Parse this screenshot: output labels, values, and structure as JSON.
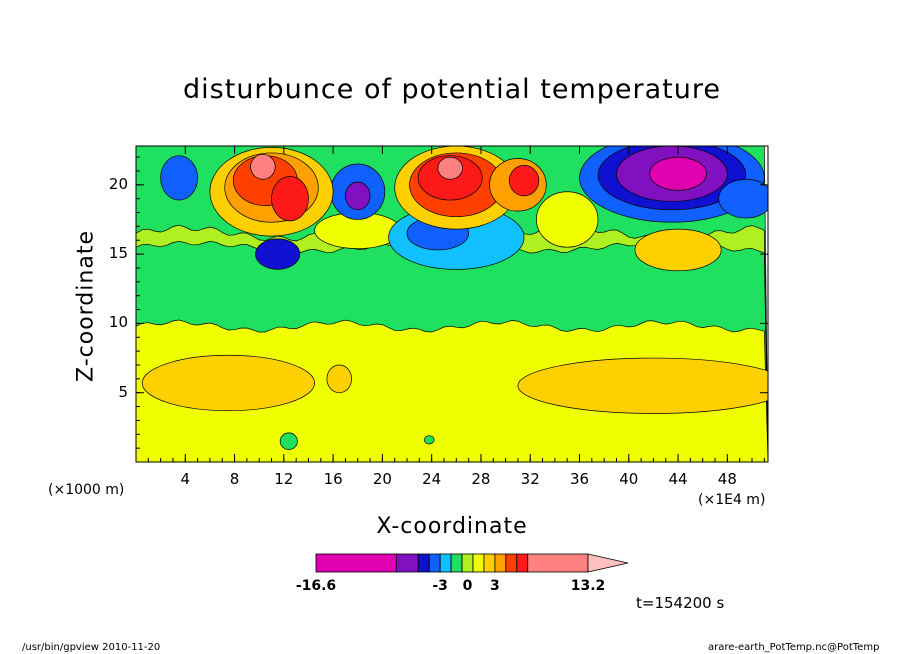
{
  "chart_data": {
    "type": "heatmap",
    "title": "disturbunce of potential temperature",
    "xlabel": "X-coordinate",
    "ylabel": "Z-coordinate",
    "x_unit": "(×1E4 m)",
    "y_unit": "(×1000 m)",
    "xlim": [
      0,
      51.3
    ],
    "ylim": [
      0,
      22.8
    ],
    "x_ticks": [
      "4",
      "8",
      "12",
      "16",
      "20",
      "24",
      "28",
      "32",
      "36",
      "40",
      "44",
      "48"
    ],
    "y_ticks": [
      "5",
      "10",
      "15",
      "20"
    ],
    "annotation": "t=154200 s",
    "colorbar": {
      "range": [
        -16.6,
        13.2
      ],
      "labels": [
        "-16.6",
        "-3",
        "0",
        "3",
        "13.2"
      ],
      "colors": [
        "#e000b0",
        "#8010c0",
        "#1010d0",
        "#1060ff",
        "#10c0ff",
        "#20e060",
        "#b0f020",
        "#f0ff00",
        "#ffd000",
        "#ffa000",
        "#ff4000",
        "#ff1a1a",
        "#ff8080",
        "#ffc0c0"
      ]
    },
    "regions": [
      {
        "field": "upper-left-warm",
        "x": 11,
        "z": 19.5,
        "value_class": "positive"
      },
      {
        "field": "upper-mid-warm",
        "x": 25.5,
        "z": 20,
        "value_class": "positive"
      },
      {
        "field": "upper-right-cold",
        "x": 44,
        "z": 20.5,
        "value_class": "negative"
      },
      {
        "field": "low-level-warm-band",
        "z": 6,
        "value_class": "weak-positive"
      }
    ]
  },
  "footer": {
    "left": "/usr/bin/gpview  2010-11-20",
    "right": "arare-earth_PotTemp.nc@PotTemp"
  }
}
